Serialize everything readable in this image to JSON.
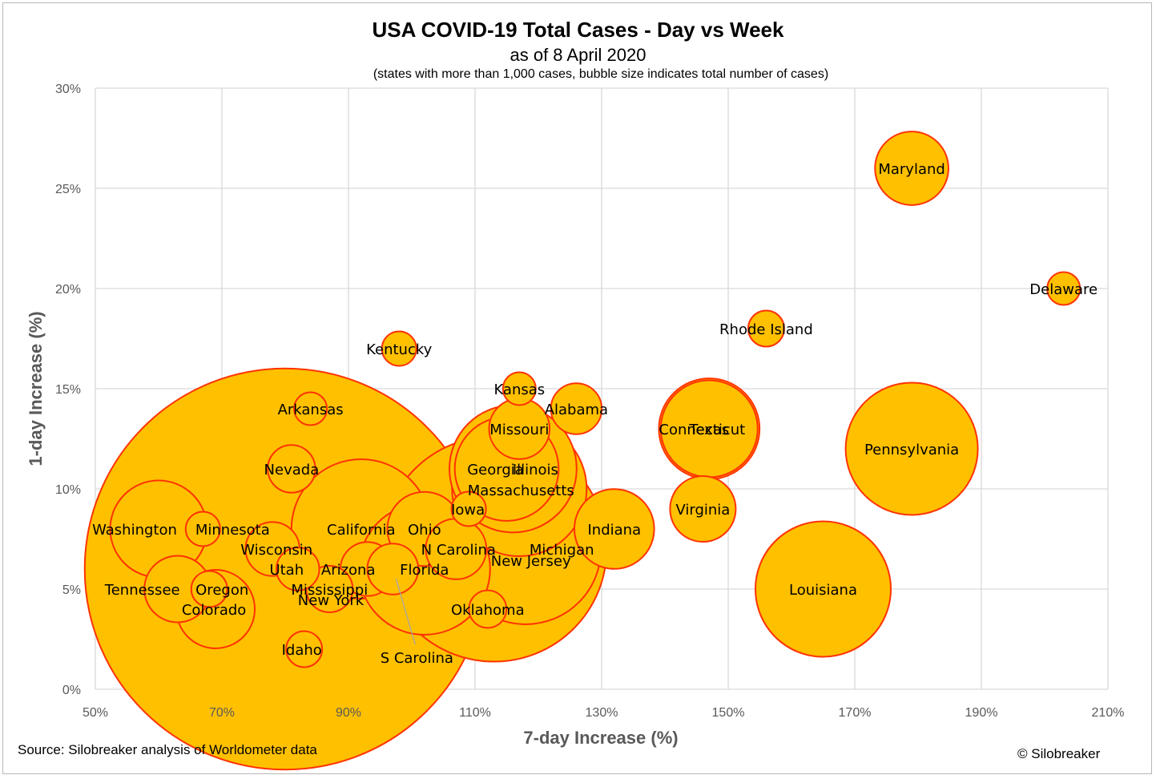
{
  "chart_data": {
    "type": "scatter",
    "title": "USA COVID-19 Total Cases - Day vs Week",
    "subtitle": "as of 8 April 2020",
    "note": "(states with more than 1,000 cases, bubble size indicates total number of cases)",
    "xlabel": "7-day Increase (%)",
    "ylabel": "1-day Increase (%)",
    "xlim": [
      50,
      210
    ],
    "ylim": [
      0,
      30
    ],
    "x_ticks": [
      "50%",
      "70%",
      "90%",
      "110%",
      "130%",
      "150%",
      "170%",
      "190%",
      "210%"
    ],
    "y_ticks": [
      "0%",
      "5%",
      "10%",
      "15%",
      "20%",
      "25%",
      "30%"
    ],
    "grid": true,
    "bubble_fill": "#FFC000",
    "bubble_stroke": "#FF3300",
    "points": [
      {
        "name": "Maryland",
        "x": 179,
        "y": 26,
        "size": 5
      },
      {
        "name": "Delaware",
        "x": 203,
        "y": 20,
        "size": 1
      },
      {
        "name": "Rhode Island",
        "x": 156,
        "y": 18,
        "size": 1.2
      },
      {
        "name": "Kentucky",
        "x": 98,
        "y": 17,
        "size": 1.1
      },
      {
        "name": "Kansas",
        "x": 117,
        "y": 15,
        "size": 1
      },
      {
        "name": "Arkansas",
        "x": 84,
        "y": 14,
        "size": 1
      },
      {
        "name": "Alabama",
        "x": 126,
        "y": 14,
        "size": 2.4
      },
      {
        "name": "Missouri",
        "x": 117,
        "y": 13,
        "size": 3.4
      },
      {
        "name": "Connecticut",
        "x": 147,
        "y": 13,
        "size": 8.7
      },
      {
        "name": "Texas",
        "x": 147,
        "y": 13,
        "size": 9.4
      },
      {
        "name": "Pennsylvania",
        "x": 179,
        "y": 12,
        "size": 16.2
      },
      {
        "name": "Nevada",
        "x": 81,
        "y": 11,
        "size": 2.1
      },
      {
        "name": "Illinois",
        "x": 116,
        "y": 11,
        "size": 15
      },
      {
        "name": "Georgia",
        "x": 115,
        "y": 11,
        "size": 10
      },
      {
        "name": "Massachusetts",
        "x": 117,
        "y": 10,
        "size": 16.8
      },
      {
        "name": "Iowa",
        "x": 109,
        "y": 9,
        "size": 1.1
      },
      {
        "name": "Virginia",
        "x": 146,
        "y": 9,
        "size": 4
      },
      {
        "name": "Washington",
        "x": 60,
        "y": 8,
        "size": 8.7
      },
      {
        "name": "Minnesota",
        "x": 67,
        "y": 8,
        "size": 1.1
      },
      {
        "name": "California",
        "x": 92,
        "y": 8,
        "size": 18
      },
      {
        "name": "Ohio",
        "x": 102,
        "y": 8,
        "size": 5.1
      },
      {
        "name": "Indiana",
        "x": 132,
        "y": 8,
        "size": 5.9
      },
      {
        "name": "Wisconsin",
        "x": 78,
        "y": 7,
        "size": 2.7
      },
      {
        "name": "N Carolina",
        "x": 107,
        "y": 7,
        "size": 3.4
      },
      {
        "name": "New Jersey",
        "x": 113,
        "y": 7,
        "size": 47
      },
      {
        "name": "Michigan",
        "x": 118,
        "y": 7,
        "size": 21
      },
      {
        "name": "Utah",
        "x": 82,
        "y": 6,
        "size": 1.7
      },
      {
        "name": "Arizona",
        "x": 93,
        "y": 6,
        "size": 2.7
      },
      {
        "name": "S Carolina",
        "x": 97,
        "y": 6,
        "size": 2.4
      },
      {
        "name": "Florida",
        "x": 102,
        "y": 6,
        "size": 16
      },
      {
        "name": "Tennessee",
        "x": 63,
        "y": 5,
        "size": 4.1
      },
      {
        "name": "Oregon",
        "x": 68,
        "y": 5,
        "size": 1.2
      },
      {
        "name": "Mississippi",
        "x": 87,
        "y": 5,
        "size": 2
      },
      {
        "name": "Louisiana",
        "x": 165,
        "y": 5,
        "size": 17
      },
      {
        "name": "Colorado",
        "x": 69,
        "y": 4,
        "size": 5.7
      },
      {
        "name": "Oklahoma",
        "x": 112,
        "y": 4,
        "size": 1.3
      },
      {
        "name": "New York",
        "x": 80,
        "y": 6,
        "size": 149
      },
      {
        "name": "Idaho",
        "x": 83,
        "y": 2,
        "size": 1.2
      }
    ]
  },
  "source": "Source: Silobreaker analysis of Worldometer data",
  "copyright": "© Silobreaker"
}
